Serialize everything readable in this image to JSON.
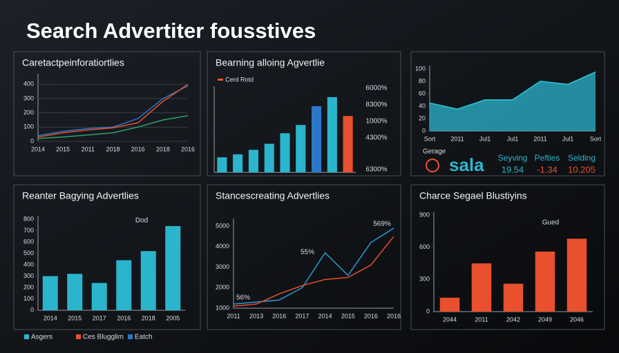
{
  "page_title": "Search Advertiter fousstives",
  "chart_data": [
    {
      "type": "line",
      "title": "Caretactpeinforatiortlies",
      "categories": [
        "2014",
        "2015",
        "2011",
        "2018",
        "2016",
        "2018",
        "2016"
      ],
      "series": [
        {
          "name": "Blue",
          "color": "#2a77c9",
          "values": [
            40,
            70,
            90,
            100,
            160,
            300,
            390
          ]
        },
        {
          "name": "Red",
          "color": "#e8502e",
          "values": [
            30,
            60,
            80,
            95,
            130,
            280,
            400
          ]
        },
        {
          "name": "Green",
          "color": "#2fa36b",
          "values": [
            20,
            30,
            45,
            60,
            100,
            150,
            180
          ]
        }
      ],
      "ylim": [
        0,
        450
      ],
      "yticks": [
        0,
        100,
        200,
        300,
        400
      ],
      "grid": true
    },
    {
      "type": "bar",
      "title": "Bearning alloing Agvertlie",
      "legend": "Cerd Rotd",
      "categories": [
        null,
        null,
        null,
        null,
        null,
        null,
        null,
        null,
        null
      ],
      "values": [
        20,
        24,
        30,
        38,
        52,
        63,
        88,
        100,
        75
      ],
      "colors": [
        "#2bb5cc",
        "#2bb5cc",
        "#2bb5cc",
        "#2bb5cc",
        "#2bb5cc",
        "#2bb5cc",
        "#2a77c9",
        "#2bb5cc",
        "#e8502e"
      ],
      "ylim": [
        0,
        110
      ],
      "annotations": [
        "6000%",
        "8300%",
        "1000%",
        "4300%",
        "6300%"
      ]
    },
    {
      "type": "area",
      "title": null,
      "categories": [
        "Sort",
        "2011",
        "Jul1",
        "Jul1",
        "2011",
        "Jul1",
        "Sort"
      ],
      "values": [
        45,
        35,
        50,
        50,
        80,
        75,
        95
      ],
      "color": "#2bb5cc",
      "ylim": [
        0,
        100
      ],
      "yticks": [
        0,
        20,
        40,
        60,
        80,
        100
      ]
    },
    {
      "type": "bar",
      "title": "Reanter Bagying Advertlies",
      "categories": [
        "2014",
        "2015",
        "2017",
        "2016",
        "2018",
        "2005"
      ],
      "values": [
        300,
        320,
        240,
        440,
        520,
        740
      ],
      "color": "#2bb5cc",
      "ylim": [
        0,
        800
      ],
      "yticks": [
        0,
        100,
        200,
        300,
        400,
        500,
        600,
        700,
        800
      ],
      "annotations": [
        "Dod"
      ]
    },
    {
      "type": "line",
      "title": "Stancescreating Advertlies",
      "categories": [
        "2011",
        "2013",
        "2016",
        "2017",
        "2014",
        "2015",
        "2016",
        "2016"
      ],
      "series": [
        {
          "name": "Blue",
          "color": "#2a9ad8",
          "values": [
            1200,
            1300,
            1400,
            2000,
            3700,
            2600,
            4200,
            4900
          ]
        },
        {
          "name": "Red",
          "color": "#e8502e",
          "values": [
            1100,
            1200,
            1700,
            2100,
            2400,
            2500,
            3100,
            4500
          ]
        }
      ],
      "ylim": [
        1000,
        5200
      ],
      "yticks": [
        1000,
        2000,
        3000,
        4000,
        5000
      ],
      "annotations": [
        "55%",
        "569%",
        "56%"
      ]
    },
    {
      "type": "bar",
      "title": "Charce Segael Blustiyins",
      "categories": [
        "2044",
        "2011",
        "2042",
        "2049",
        "2046"
      ],
      "values": [
        130,
        450,
        260,
        560,
        680
      ],
      "color": "#e8502e",
      "ylim": [
        0,
        900
      ],
      "yticks": [
        0,
        300,
        600,
        900
      ],
      "annotations": [
        "Gued"
      ]
    }
  ],
  "kpi": {
    "label": "Gerage",
    "name": "sala",
    "items": [
      {
        "label": "Seyving",
        "value": "19.54"
      },
      {
        "label": "Pefties",
        "value": "-1.34"
      },
      {
        "label": "Selding",
        "value": "10.205"
      }
    ]
  },
  "legend": [
    {
      "name": "Asgers",
      "color": "#2bb5cc"
    },
    {
      "name": "Ces Blugglim",
      "color": "#e8502e"
    },
    {
      "name": "Eatch",
      "color": "#2a77c9"
    }
  ]
}
